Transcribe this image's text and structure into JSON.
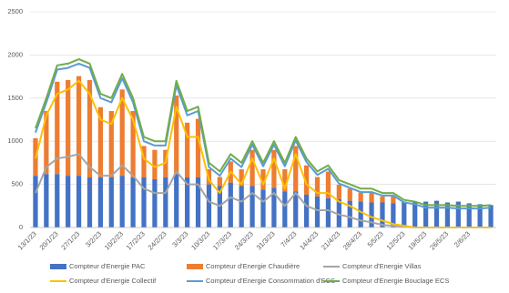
{
  "chart_data": {
    "type": "combo",
    "stacked": true,
    "grid": true,
    "legend": "bottom",
    "categories": [
      "13/1/23",
      null,
      "20/1/23",
      null,
      "27/1/23",
      null,
      "3/2/23",
      null,
      "10/2/23",
      null,
      "17/2/23",
      null,
      "24/2/23",
      null,
      "3/3/23",
      null,
      "10/3/23",
      null,
      "17/3/23",
      null,
      "24/3/23",
      null,
      "31/3/23",
      null,
      "7/4/23",
      null,
      "14/4/23",
      null,
      "21/4/23",
      null,
      "28/4/23",
      null,
      "5/5/23",
      null,
      "12/5/23",
      null,
      "19/5/23",
      null,
      "26/5/23",
      null,
      "2/6/23",
      null,
      null
    ],
    "ylim": [
      0,
      2500
    ],
    "yticks": [
      0,
      500,
      1000,
      1500,
      2000,
      2500
    ],
    "series": [
      {
        "name": "Compteur d'Energie PAC",
        "type": "bar",
        "color": "#4472c4",
        "values": [
          600,
          620,
          620,
          600,
          600,
          580,
          580,
          580,
          600,
          580,
          580,
          560,
          580,
          620,
          580,
          580,
          500,
          480,
          520,
          480,
          480,
          440,
          460,
          420,
          420,
          380,
          360,
          340,
          330,
          310,
          300,
          290,
          290,
          280,
          300,
          300,
          300,
          310,
          290,
          300,
          280,
          270,
          260
        ]
      },
      {
        "name": "Compteur d'Energie Chaudière",
        "type": "bar",
        "color": "#ed7d31",
        "values": [
          435,
          730,
          1070,
          1110,
          1155,
          1130,
          815,
          770,
          1000,
          770,
          365,
          340,
          320,
          910,
          635,
          680,
          175,
          105,
          245,
          195,
          420,
          235,
          440,
          255,
          525,
          340,
          225,
          308,
          165,
          140,
          105,
          115,
          70,
          80,
          0,
          0,
          0,
          0,
          0,
          0,
          0,
          0,
          0
        ]
      },
      {
        "name": "Compteur d'Energie Villas",
        "type": "line",
        "color": "#a5a5a5",
        "values": [
          400,
          700,
          800,
          820,
          850,
          700,
          600,
          600,
          720,
          600,
          450,
          400,
          400,
          650,
          500,
          500,
          300,
          250,
          350,
          300,
          400,
          300,
          400,
          250,
          400,
          250,
          200,
          200,
          150,
          120,
          80,
          60,
          30,
          20,
          10,
          0,
          0,
          0,
          0,
          0,
          0,
          0,
          0
        ]
      },
      {
        "name": "Compteur d'Energie Collectif",
        "type": "line",
        "color": "#ffc000",
        "values": [
          800,
          1300,
          1550,
          1600,
          1700,
          1550,
          1250,
          1200,
          1500,
          1250,
          800,
          700,
          750,
          1400,
          1050,
          1050,
          550,
          400,
          650,
          500,
          800,
          500,
          800,
          450,
          850,
          500,
          400,
          400,
          300,
          250,
          180,
          120,
          80,
          40,
          20,
          0,
          0,
          0,
          0,
          0,
          0,
          0,
          0
        ]
      },
      {
        "name": "Compteur d'Energie Consommation d'ECS",
        "type": "line",
        "color": "#5b9bd5",
        "values": [
          1100,
          1450,
          1830,
          1850,
          1900,
          1850,
          1500,
          1450,
          1730,
          1450,
          1000,
          950,
          950,
          1650,
          1300,
          1350,
          700,
          600,
          800,
          700,
          960,
          710,
          960,
          710,
          1010,
          760,
          610,
          680,
          510,
          460,
          410,
          410,
          370,
          370,
          290,
          270,
          230,
          230,
          230,
          220,
          220,
          220,
          230
        ]
      },
      {
        "name": "Compteur d'Energie Bouclage ECS",
        "type": "line",
        "color": "#70ad47",
        "values": [
          1150,
          1500,
          1880,
          1900,
          1950,
          1900,
          1550,
          1500,
          1780,
          1500,
          1050,
          1000,
          1000,
          1700,
          1350,
          1400,
          750,
          650,
          850,
          750,
          1000,
          750,
          1000,
          750,
          1050,
          800,
          650,
          720,
          550,
          500,
          450,
          450,
          400,
          400,
          320,
          300,
          260,
          260,
          260,
          250,
          250,
          250,
          260
        ]
      }
    ]
  }
}
